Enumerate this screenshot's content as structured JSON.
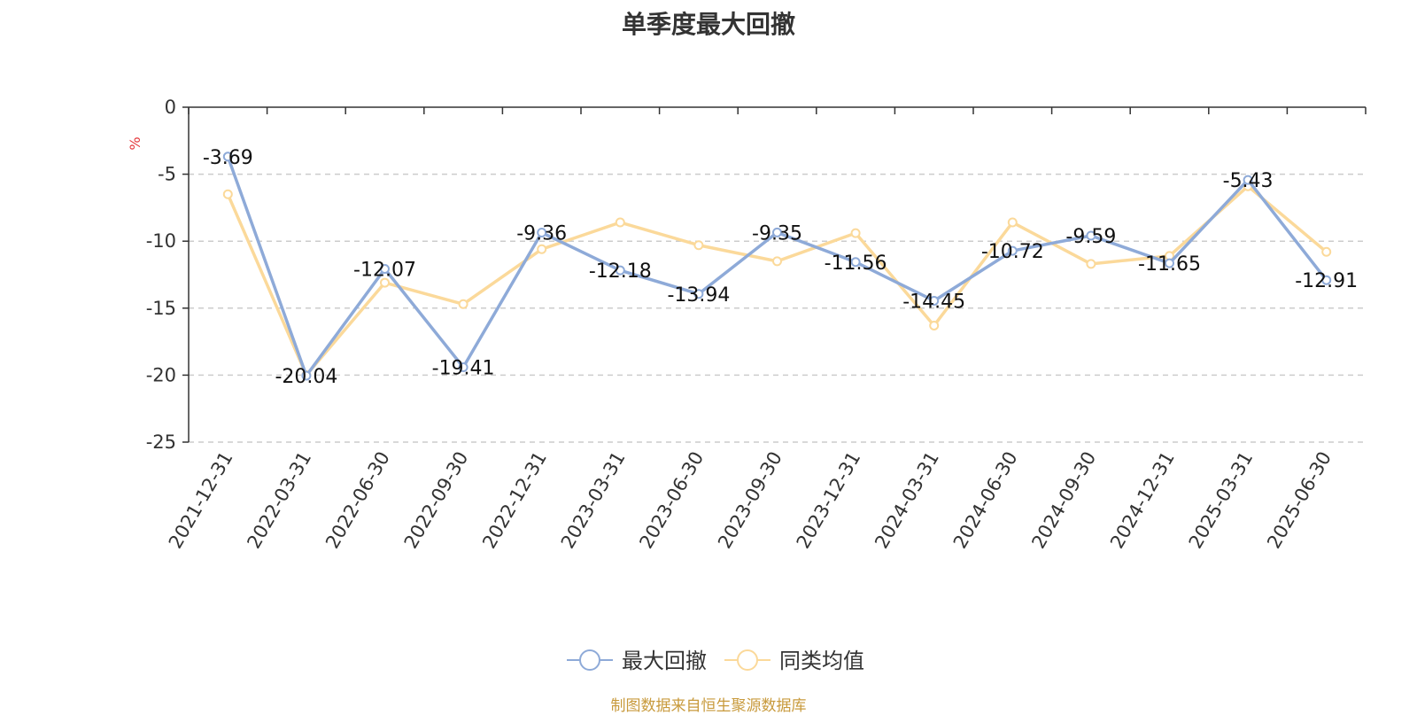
{
  "chart_data": {
    "type": "line",
    "title": "单季度最大回撤",
    "ylabel": "%",
    "ylim": [
      -25,
      0
    ],
    "yticks": [
      0,
      -5,
      -10,
      -15,
      -20,
      -25
    ],
    "grid": true,
    "legend_position": "bottom-center",
    "x": [
      "2021-12-31",
      "2022-03-31",
      "2022-06-30",
      "2022-09-30",
      "2022-12-31",
      "2023-03-31",
      "2023-06-30",
      "2023-09-30",
      "2023-12-31",
      "2024-03-31",
      "2024-06-30",
      "2024-09-30",
      "2024-12-31",
      "2025-03-31",
      "2025-06-30"
    ],
    "series": [
      {
        "name": "最大回撤",
        "color": "#8eaad8",
        "values": [
          -3.69,
          -20.04,
          -12.07,
          -19.41,
          -9.36,
          -12.18,
          -13.94,
          -9.35,
          -11.56,
          -14.45,
          -10.72,
          -9.59,
          -11.65,
          -5.43,
          -12.91
        ],
        "show_labels": true
      },
      {
        "name": "同类均值",
        "color": "#fbd99a",
        "values": [
          -6.5,
          -20.0,
          -13.1,
          -14.7,
          -10.6,
          -8.6,
          -10.3,
          -11.5,
          -9.4,
          -16.3,
          -8.6,
          -11.7,
          -11.1,
          -5.9,
          -10.8
        ],
        "show_labels": false
      }
    ]
  },
  "footer": "制图数据来自恒生聚源数据库"
}
